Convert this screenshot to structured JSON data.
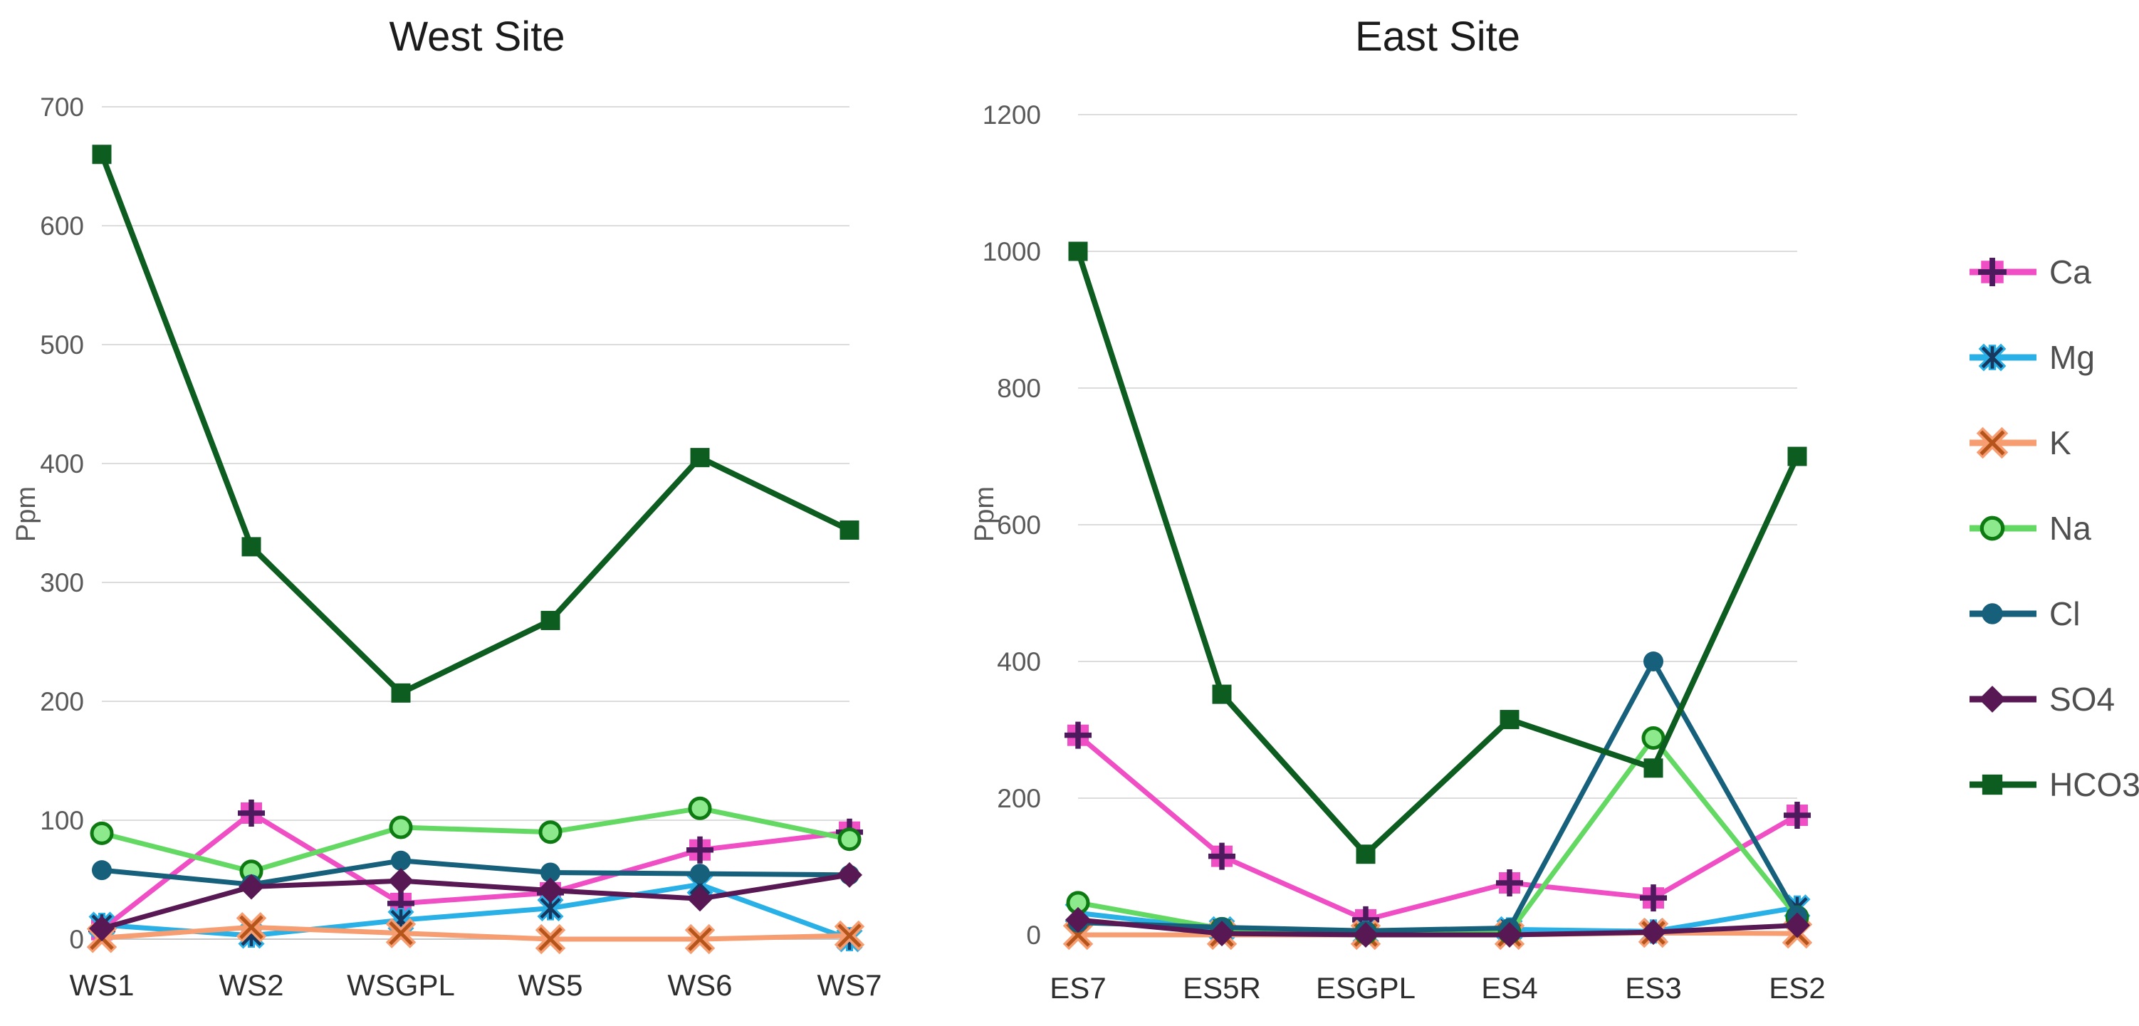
{
  "figure": {
    "background": "#ffffff",
    "gridline_color": "#dcdcdc",
    "axis_line_color": "#c6c6c6",
    "tick_label_color": "#595959",
    "category_label_color": "#2e2e2e",
    "title_color": "#1b1b1b"
  },
  "legend": {
    "position": "right",
    "items": [
      {
        "id": "ca",
        "label": "Ca",
        "line": "#f04ec4",
        "accent": "#4d1a5e",
        "fill": "#f04ec4",
        "marker": "plus-square"
      },
      {
        "id": "mg",
        "label": "Mg",
        "line": "#29b0e6",
        "accent": "#17375e",
        "fill": "#29b0e6",
        "marker": "star-x"
      },
      {
        "id": "k",
        "label": "K",
        "line": "#f79d72",
        "accent": "#b5551b",
        "fill": "#f79d72",
        "marker": "x"
      },
      {
        "id": "na",
        "label": "Na",
        "line": "#63d963",
        "accent": "#0e7a12",
        "fill": "#8cea8c",
        "marker": "circle-ring"
      },
      {
        "id": "cl",
        "label": "Cl",
        "line": "#17607c",
        "accent": "#17607c",
        "fill": "#17607c",
        "marker": "circle"
      },
      {
        "id": "so4",
        "label": "SO4",
        "line": "#571853",
        "accent": "#571853",
        "fill": "#571853",
        "marker": "diamond"
      },
      {
        "id": "hco3",
        "label": "HCO3",
        "line": "#0d5c20",
        "accent": "#0d5c20",
        "fill": "#0d5c20",
        "marker": "square"
      }
    ]
  },
  "chart_data": [
    {
      "type": "line",
      "title": "West Site",
      "xlabel": "",
      "ylabel": "Ppm",
      "ylim": [
        0,
        700
      ],
      "ytick_step": 100,
      "yticks": [
        0,
        100,
        200,
        300,
        400,
        500,
        600,
        700
      ],
      "grid": true,
      "legend_position": "shared-right",
      "categories": [
        "WS1",
        "WS2",
        "WSGPL",
        "WS5",
        "WS6",
        "WS7"
      ],
      "series": [
        {
          "name": "Ca",
          "values": [
            8,
            106,
            30,
            39,
            75,
            90
          ]
        },
        {
          "name": "Mg",
          "values": [
            12,
            3,
            16,
            26,
            46,
            0
          ]
        },
        {
          "name": "K",
          "values": [
            1,
            10,
            5,
            0,
            0,
            3
          ]
        },
        {
          "name": "Na",
          "values": [
            89,
            57,
            94,
            90,
            110,
            84
          ]
        },
        {
          "name": "Cl",
          "values": [
            58,
            46,
            66,
            56,
            55,
            54
          ]
        },
        {
          "name": "SO4",
          "values": [
            9,
            44,
            49,
            41,
            34,
            54
          ]
        },
        {
          "name": "HCO3",
          "values": [
            660,
            330,
            207,
            268,
            405,
            344
          ]
        }
      ]
    },
    {
      "type": "line",
      "title": "East Site",
      "xlabel": "",
      "ylabel": "Ppm",
      "ylim": [
        0,
        1200
      ],
      "ytick_step": 200,
      "yticks": [
        0,
        200,
        400,
        600,
        800,
        1000,
        1200
      ],
      "grid": true,
      "legend_position": "shared-right",
      "categories": [
        "ES7",
        "ES5R",
        "ESGPL",
        "ES4",
        "ES3",
        "ES2"
      ],
      "series": [
        {
          "name": "Ca",
          "values": [
            292,
            115,
            22,
            76,
            54,
            175
          ]
        },
        {
          "name": "Mg",
          "values": [
            32,
            8,
            3,
            8,
            5,
            40
          ]
        },
        {
          "name": "K",
          "values": [
            0,
            0,
            0,
            0,
            3,
            2
          ]
        },
        {
          "name": "Na",
          "values": [
            47,
            9,
            3,
            4,
            288,
            26
          ]
        },
        {
          "name": "Cl",
          "values": [
            18,
            11,
            6,
            10,
            400,
            28
          ]
        },
        {
          "name": "SO4",
          "values": [
            22,
            2,
            0,
            0,
            4,
            14
          ]
        },
        {
          "name": "HCO3",
          "values": [
            1000,
            352,
            118,
            315,
            244,
            700
          ]
        }
      ]
    }
  ]
}
